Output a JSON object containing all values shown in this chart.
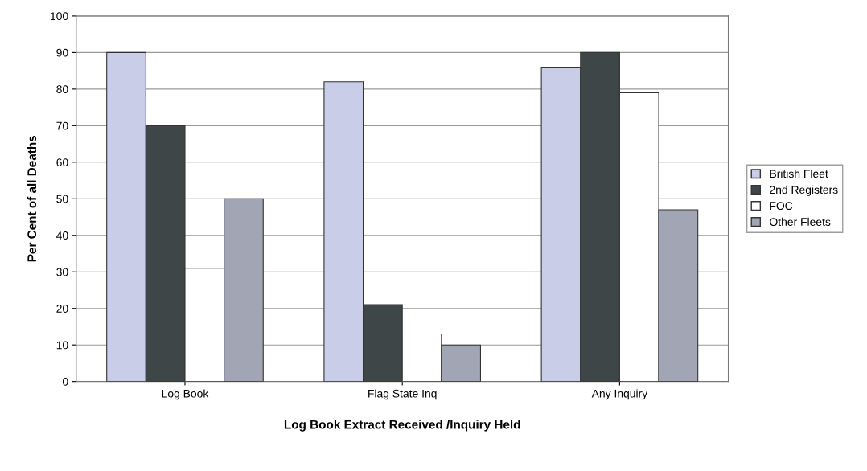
{
  "chart_data": {
    "type": "bar",
    "xlabel": "Log Book Extract Received /Inquiry Held",
    "ylabel": "Per Cent of all Deaths",
    "categories": [
      "Log Book",
      "Flag State Inq",
      "Any Inquiry"
    ],
    "series": [
      {
        "name": "British Fleet",
        "color": "#c9cde8",
        "values": [
          90,
          82,
          86
        ]
      },
      {
        "name": "2nd Registers",
        "color": "#3e4648",
        "values": [
          70,
          21,
          90
        ]
      },
      {
        "name": "FOC",
        "color": "#ffffff",
        "values": [
          31,
          13,
          79
        ]
      },
      {
        "name": "Other Fleets",
        "color": "#a2a6b4",
        "values": [
          50,
          10,
          47
        ]
      }
    ],
    "ylim": [
      0,
      100
    ],
    "yticks": [
      0,
      10,
      20,
      30,
      40,
      50,
      60,
      70,
      80,
      90,
      100
    ],
    "grid": "y",
    "legend": "right"
  }
}
